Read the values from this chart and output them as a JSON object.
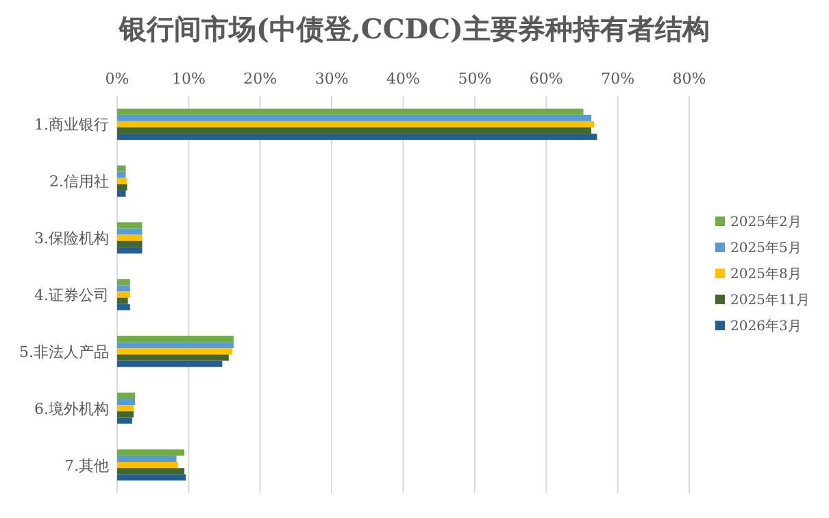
{
  "chart_data": {
    "type": "bar",
    "orientation": "horizontal",
    "title": "银行间市场(中债登,CCDC)主要券种持有者结构",
    "categories": [
      "1.商业银行",
      "2.信用社",
      "3.保险机构",
      "4.证券公司",
      "5.非法人产品",
      "6.境外机构",
      "7.其他"
    ],
    "series": [
      {
        "name": "2025年2月",
        "color": "#70ad47",
        "values": [
          65.2,
          1.2,
          3.5,
          1.8,
          16.3,
          2.5,
          9.4
        ]
      },
      {
        "name": "2025年5月",
        "color": "#5b9bd5",
        "values": [
          66.3,
          1.2,
          3.5,
          1.8,
          16.3,
          2.5,
          8.3
        ]
      },
      {
        "name": "2025年8月",
        "color": "#ffc000",
        "values": [
          66.7,
          1.4,
          3.5,
          1.8,
          16.1,
          2.3,
          8.5
        ]
      },
      {
        "name": "2025年11月",
        "color": "#43682b",
        "values": [
          66.3,
          1.4,
          3.5,
          1.5,
          15.6,
          2.3,
          9.4
        ]
      },
      {
        "name": "2026年3月",
        "color": "#255e91",
        "values": [
          67.1,
          1.2,
          3.5,
          1.8,
          14.7,
          2.1,
          9.6
        ]
      }
    ],
    "xlim": [
      0,
      80
    ],
    "xticks": [
      {
        "value": 0,
        "label": "0%"
      },
      {
        "value": 10,
        "label": "10%"
      },
      {
        "value": 20,
        "label": "20%"
      },
      {
        "value": 30,
        "label": "30%"
      },
      {
        "value": 40,
        "label": "40%"
      },
      {
        "value": 50,
        "label": "50%"
      },
      {
        "value": 60,
        "label": "60%"
      },
      {
        "value": 70,
        "label": "70%"
      },
      {
        "value": 80,
        "label": "80%"
      }
    ],
    "grid": "x",
    "legend": "right"
  }
}
